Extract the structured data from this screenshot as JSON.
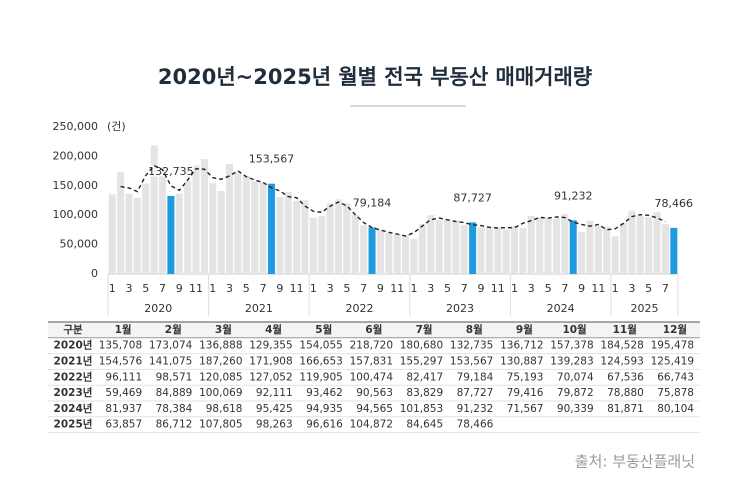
{
  "chart_data": {
    "type": "bar",
    "title": "2020년~2025년 월별 전국 부동산 매매거래량",
    "unit_label": "(건)",
    "categories": [
      "1",
      null,
      "3",
      null,
      "5",
      null,
      "7",
      null,
      "9",
      null,
      "11",
      null,
      "1",
      null,
      "3",
      null,
      "5",
      null,
      "7",
      null,
      "9",
      null,
      "11",
      null,
      "1",
      null,
      "3",
      null,
      "5",
      null,
      "7",
      null,
      "9",
      null,
      "11",
      null,
      "1",
      null,
      "3",
      null,
      "5",
      null,
      "7",
      null,
      "9",
      null,
      "11",
      null,
      "1",
      null,
      "3",
      null,
      "5",
      null,
      "7",
      null,
      "9",
      null,
      "11",
      null,
      "1",
      null,
      "3",
      null,
      "5",
      null,
      "7",
      null
    ],
    "groups": [
      "2020",
      "2021",
      "2022",
      "2023",
      "2024",
      "2025"
    ],
    "series": [
      {
        "color": "#e4e4e4",
        "highlight_color": "#1e9be0",
        "values": [
          135708,
          173074,
          136888,
          129355,
          154055,
          218720,
          180680,
          132735,
          136712,
          157378,
          184528,
          195478,
          154576,
          141075,
          187260,
          171908,
          166653,
          157831,
          155297,
          153567,
          130887,
          139283,
          124593,
          125419,
          96111,
          98571,
          120085,
          127052,
          119905,
          100474,
          82417,
          79184,
          75193,
          70074,
          67536,
          66743,
          59469,
          84889,
          100069,
          92111,
          93462,
          90563,
          83829,
          87727,
          79416,
          79872,
          78880,
          75878,
          81937,
          78384,
          98618,
          95425,
          94935,
          94565,
          101853,
          91232,
          71567,
          90339,
          81871,
          80104,
          63857,
          86712,
          107805,
          98263,
          96616,
          104872,
          84645,
          78466
        ],
        "value_labels": [
          null,
          null,
          null,
          null,
          null,
          null,
          null,
          "132,735",
          null,
          null,
          null,
          null,
          null,
          null,
          null,
          null,
          null,
          null,
          null,
          "153,567",
          null,
          null,
          null,
          null,
          null,
          null,
          null,
          null,
          null,
          null,
          null,
          "79,184",
          null,
          null,
          null,
          null,
          null,
          null,
          null,
          null,
          null,
          null,
          null,
          "87,727",
          null,
          null,
          null,
          null,
          null,
          null,
          null,
          null,
          null,
          null,
          null,
          "91,232",
          null,
          null,
          null,
          null,
          null,
          null,
          null,
          null,
          null,
          null,
          null,
          "78,466"
        ]
      },
      {
        "type": "line",
        "color": "#222222",
        "dashed": true,
        "values": [
          null,
          148600,
          146500,
          140100,
          167400,
          184500,
          177400,
          150000,
          142300,
          159500,
          179100,
          178200,
          163700,
          161000,
          166800,
          175300,
          165500,
          159900,
          155600,
          146600,
          141300,
          131600,
          129800,
          115400,
          106700,
          104900,
          115300,
          122400,
          115800,
          100900,
          87400,
          78900,
          74800,
          70900,
          68100,
          64600,
          70400,
          81500,
          92400,
          95200,
          92100,
          89300,
          87400,
          83600,
          82300,
          79400,
          78200,
          78900,
          78700,
          86300,
          90800,
          96300,
          95000,
          97100,
          95900,
          88200,
          84400,
          81300,
          84100,
          75300,
          76900,
          86100,
          97600,
          100900,
          99900,
          95400,
          89300,
          null
        ]
      }
    ],
    "ylim": [
      0,
      250000
    ],
    "yticks": [
      {
        "value": 0,
        "label": "0"
      },
      {
        "value": 50000,
        "label": "50,000"
      },
      {
        "value": 100000,
        "label": "100,000"
      },
      {
        "value": 150000,
        "label": "150,000"
      },
      {
        "value": 200000,
        "label": "200,000"
      },
      {
        "value": 250000,
        "label": "250,000"
      }
    ]
  },
  "table": {
    "header": [
      "구분",
      "1월",
      "2월",
      "3월",
      "4월",
      "5월",
      "6월",
      "7월",
      "8월",
      "9월",
      "10월",
      "11월",
      "12월"
    ],
    "rows": [
      [
        "2020년",
        "135,708",
        "173,074",
        "136,888",
        "129,355",
        "154,055",
        "218,720",
        "180,680",
        "132,735",
        "136,712",
        "157,378",
        "184,528",
        "195,478"
      ],
      [
        "2021년",
        "154,576",
        "141,075",
        "187,260",
        "171,908",
        "166,653",
        "157,831",
        "155,297",
        "153,567",
        "130,887",
        "139,283",
        "124,593",
        "125,419"
      ],
      [
        "2022년",
        "96,111",
        "98,571",
        "120,085",
        "127,052",
        "119,905",
        "100,474",
        "82,417",
        "79,184",
        "75,193",
        "70,074",
        "67,536",
        "66,743"
      ],
      [
        "2023년",
        "59,469",
        "84,889",
        "100,069",
        "92,111",
        "93,462",
        "90,563",
        "83,829",
        "87,727",
        "79,416",
        "79,872",
        "78,880",
        "75,878"
      ],
      [
        "2024년",
        "81,937",
        "78,384",
        "98,618",
        "95,425",
        "94,935",
        "94,565",
        "101,853",
        "91,232",
        "71,567",
        "90,339",
        "81,871",
        "80,104"
      ],
      [
        "2025년",
        "63,857",
        "86,712",
        "107,805",
        "98,263",
        "96,616",
        "104,872",
        "84,645",
        "78,466"
      ]
    ]
  },
  "source": "출처: 부동산플래닛"
}
